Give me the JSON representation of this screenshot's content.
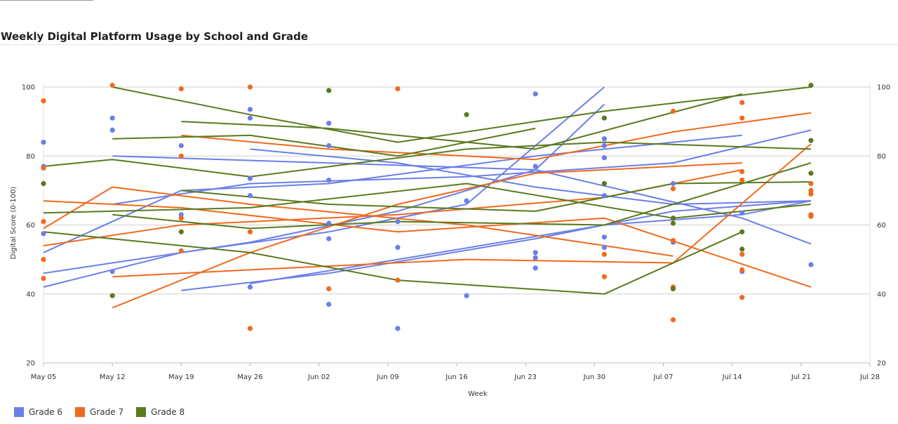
{
  "chart_data": {
    "type": "line",
    "title": "Weekly Digital Platform Usage by School and Grade",
    "xlabel": "Week",
    "ylabel": "Digital Score (0-100)",
    "ylim": [
      20,
      100
    ],
    "y_ticks": [
      20,
      40,
      60,
      80,
      100
    ],
    "x_range": [
      "2025-05-05",
      "2025-07-28"
    ],
    "x_tick_labels": [
      "May 05",
      "May 12",
      "May 19",
      "May 26",
      "Jun 02",
      "Jun 09",
      "Jun 16",
      "Jun 23",
      "Jun 30",
      "Jul 07",
      "Jul 14",
      "Jul 21",
      "Jul 28"
    ],
    "grid": true,
    "legend_position": "bottom-left",
    "series": [
      {
        "name": "Grade 6",
        "color": "#6a7fe8",
        "points": [
          [
            "2025-05-05",
            84
          ],
          [
            "2025-05-05",
            77
          ],
          [
            "2025-05-05",
            57.5
          ],
          [
            "2025-05-12",
            91
          ],
          [
            "2025-05-12",
            87.5
          ],
          [
            "2025-05-12",
            46.5
          ],
          [
            "2025-05-19",
            83
          ],
          [
            "2025-05-19",
            63
          ],
          [
            "2025-05-26",
            93.5
          ],
          [
            "2025-05-26",
            91
          ],
          [
            "2025-05-26",
            73.5
          ],
          [
            "2025-05-26",
            68.5
          ],
          [
            "2025-05-26",
            42
          ],
          [
            "2025-06-03",
            89.5
          ],
          [
            "2025-06-03",
            83
          ],
          [
            "2025-06-03",
            73
          ],
          [
            "2025-06-03",
            60.5
          ],
          [
            "2025-06-03",
            56
          ],
          [
            "2025-06-03",
            37
          ],
          [
            "2025-06-10",
            61
          ],
          [
            "2025-06-10",
            53.5
          ],
          [
            "2025-06-10",
            30
          ],
          [
            "2025-06-17",
            67
          ],
          [
            "2025-06-17",
            39.5
          ],
          [
            "2025-06-24",
            98
          ],
          [
            "2025-06-24",
            77
          ],
          [
            "2025-06-24",
            52
          ],
          [
            "2025-06-24",
            50.5
          ],
          [
            "2025-06-24",
            47.5
          ],
          [
            "2025-07-01",
            85
          ],
          [
            "2025-07-01",
            83
          ],
          [
            "2025-07-01",
            79.5
          ],
          [
            "2025-07-01",
            68.5
          ],
          [
            "2025-07-01",
            56.5
          ],
          [
            "2025-07-01",
            53.5
          ],
          [
            "2025-07-08",
            72
          ],
          [
            "2025-07-08",
            55
          ],
          [
            "2025-07-15",
            63.5
          ],
          [
            "2025-07-15",
            46.5
          ],
          [
            "2025-07-22",
            48.5
          ]
        ]
      },
      {
        "name": "Grade 7",
        "color": "#f06a1e",
        "points": [
          [
            "2025-05-05",
            96
          ],
          [
            "2025-05-05",
            76.5
          ],
          [
            "2025-05-05",
            61
          ],
          [
            "2025-05-05",
            50
          ],
          [
            "2025-05-05",
            44.5
          ],
          [
            "2025-05-12",
            100.5
          ],
          [
            "2025-05-19",
            99.5
          ],
          [
            "2025-05-19",
            80
          ],
          [
            "2025-05-19",
            62
          ],
          [
            "2025-05-19",
            52.5
          ],
          [
            "2025-05-26",
            100
          ],
          [
            "2025-05-26",
            58
          ],
          [
            "2025-05-26",
            30
          ],
          [
            "2025-06-03",
            41.5
          ],
          [
            "2025-06-10",
            99.5
          ],
          [
            "2025-06-10",
            44
          ],
          [
            "2025-07-01",
            51.5
          ],
          [
            "2025-07-01",
            45
          ],
          [
            "2025-07-08",
            93
          ],
          [
            "2025-07-08",
            70.5
          ],
          [
            "2025-07-08",
            55.5
          ],
          [
            "2025-07-08",
            42
          ],
          [
            "2025-07-08",
            32.5
          ],
          [
            "2025-07-15",
            95.5
          ],
          [
            "2025-07-15",
            91
          ],
          [
            "2025-07-15",
            75.5
          ],
          [
            "2025-07-15",
            73
          ],
          [
            "2025-07-15",
            51.5
          ],
          [
            "2025-07-15",
            47
          ],
          [
            "2025-07-15",
            39
          ],
          [
            "2025-07-22",
            72
          ],
          [
            "2025-07-22",
            70
          ],
          [
            "2025-07-22",
            69
          ],
          [
            "2025-07-22",
            63
          ],
          [
            "2025-07-22",
            62.5
          ]
        ]
      },
      {
        "name": "Grade 8",
        "color": "#5a7a1e",
        "points": [
          [
            "2025-05-05",
            72
          ],
          [
            "2025-05-12",
            39.5
          ],
          [
            "2025-05-19",
            58
          ],
          [
            "2025-06-03",
            99
          ],
          [
            "2025-06-17",
            92
          ],
          [
            "2025-07-01",
            91
          ],
          [
            "2025-07-01",
            72
          ],
          [
            "2025-07-08",
            62
          ],
          [
            "2025-07-08",
            60.5
          ],
          [
            "2025-07-08",
            41.5
          ],
          [
            "2025-07-15",
            58
          ],
          [
            "2025-07-15",
            53
          ],
          [
            "2025-07-22",
            100.5
          ],
          [
            "2025-07-22",
            84.5
          ],
          [
            "2025-07-22",
            75
          ]
        ]
      }
    ],
    "trend_lines": [
      {
        "series": "Grade 6",
        "segments": [
          [
            [
              "2025-05-05",
              42
            ],
            [
              "2025-05-19",
              52
            ],
            [
              "2025-06-03",
              58
            ],
            [
              "2025-06-17",
              66
            ],
            [
              "2025-07-01",
              100
            ]
          ],
          [
            [
              "2025-05-05",
              46
            ],
            [
              "2025-05-26",
              55
            ],
            [
              "2025-06-10",
              64
            ],
            [
              "2025-06-24",
              76
            ],
            [
              "2025-07-01",
              95
            ]
          ],
          [
            [
              "2025-05-05",
              52
            ],
            [
              "2025-05-19",
              70
            ],
            [
              "2025-06-03",
              72
            ],
            [
              "2025-06-24",
              80
            ],
            [
              "2025-07-15",
              86
            ]
          ],
          [
            [
              "2025-05-12",
              66
            ],
            [
              "2025-05-26",
              72
            ],
            [
              "2025-06-17",
              74
            ],
            [
              "2025-07-08",
              78
            ],
            [
              "2025-07-22",
              87.5
            ]
          ],
          [
            [
              "2025-05-12",
              80
            ],
            [
              "2025-06-03",
              78
            ],
            [
              "2025-06-24",
              76
            ],
            [
              "2025-07-15",
              62
            ],
            [
              "2025-07-22",
              54.5
            ]
          ],
          [
            [
              "2025-05-19",
              41
            ],
            [
              "2025-06-03",
              46
            ],
            [
              "2025-06-24",
              56
            ],
            [
              "2025-07-08",
              64
            ],
            [
              "2025-07-22",
              67
            ]
          ],
          [
            [
              "2025-05-26",
              43
            ],
            [
              "2025-06-10",
              50
            ],
            [
              "2025-07-01",
              60
            ],
            [
              "2025-07-15",
              63
            ],
            [
              "2025-07-22",
              67
            ]
          ],
          [
            [
              "2025-05-26",
              82
            ],
            [
              "2025-06-10",
              78
            ],
            [
              "2025-06-24",
              71
            ],
            [
              "2025-07-08",
              66
            ],
            [
              "2025-07-22",
              67
            ]
          ]
        ]
      },
      {
        "series": "Grade 7",
        "segments": [
          [
            [
              "2025-05-05",
              59
            ],
            [
              "2025-05-12",
              71
            ],
            [
              "2025-05-26",
              66
            ],
            [
              "2025-06-17",
              60
            ],
            [
              "2025-07-08",
              51
            ]
          ],
          [
            [
              "2025-05-05",
              67
            ],
            [
              "2025-05-19",
              65
            ],
            [
              "2025-06-10",
              58
            ],
            [
              "2025-07-01",
              62
            ],
            [
              "2025-07-22",
              42
            ]
          ],
          [
            [
              "2025-05-12",
              36
            ],
            [
              "2025-05-26",
              52
            ],
            [
              "2025-06-10",
              66
            ],
            [
              "2025-06-24",
              75
            ],
            [
              "2025-07-15",
              78
            ]
          ],
          [
            [
              "2025-05-12",
              45
            ],
            [
              "2025-05-26",
              47
            ],
            [
              "2025-06-17",
              50
            ],
            [
              "2025-07-08",
              49
            ],
            [
              "2025-07-22",
              83.5
            ]
          ],
          [
            [
              "2025-05-19",
              86
            ],
            [
              "2025-06-03",
              82
            ],
            [
              "2025-06-24",
              79
            ],
            [
              "2025-07-08",
              87
            ],
            [
              "2025-07-22",
              92.5
            ]
          ],
          [
            [
              "2025-05-05",
              54
            ],
            [
              "2025-05-19",
              60
            ],
            [
              "2025-06-10",
              63
            ],
            [
              "2025-07-01",
              68
            ],
            [
              "2025-07-15",
              76
            ]
          ]
        ]
      },
      {
        "series": "Grade 8",
        "segments": [
          [
            [
              "2025-05-05",
              77
            ],
            [
              "2025-05-12",
              79
            ],
            [
              "2025-05-26",
              74
            ],
            [
              "2025-06-17",
              82
            ],
            [
              "2025-07-01",
              84
            ],
            [
              "2025-07-22",
              82
            ]
          ],
          [
            [
              "2025-05-05",
              63.5
            ],
            [
              "2025-05-26",
              65
            ],
            [
              "2025-06-17",
              72
            ],
            [
              "2025-07-08",
              62
            ],
            [
              "2025-07-22",
              66
            ]
          ],
          [
            [
              "2025-05-12",
              100
            ],
            [
              "2025-05-26",
              92
            ],
            [
              "2025-06-10",
              84
            ],
            [
              "2025-07-01",
              93
            ],
            [
              "2025-07-22",
              100
            ]
          ],
          [
            [
              "2025-05-12",
              85
            ],
            [
              "2025-05-26",
              86
            ],
            [
              "2025-06-10",
              80
            ],
            [
              "2025-06-24",
              88
            ]
          ],
          [
            [
              "2025-05-19",
              90
            ],
            [
              "2025-06-03",
              88
            ],
            [
              "2025-06-24",
              82
            ],
            [
              "2025-07-15",
              98
            ]
          ],
          [
            [
              "2025-05-05",
              58
            ],
            [
              "2025-05-26",
              52
            ],
            [
              "2025-06-10",
              44
            ],
            [
              "2025-07-01",
              40
            ],
            [
              "2025-07-15",
              58
            ]
          ],
          [
            [
              "2025-05-19",
              70
            ],
            [
              "2025-06-03",
              66
            ],
            [
              "2025-06-24",
              64
            ],
            [
              "2025-07-08",
              72
            ],
            [
              "2025-07-22",
              72.5
            ]
          ],
          [
            [
              "2025-05-12",
              63
            ],
            [
              "2025-05-26",
              59
            ],
            [
              "2025-06-10",
              61
            ],
            [
              "2025-07-01",
              60
            ],
            [
              "2025-07-22",
              78
            ]
          ]
        ]
      }
    ]
  }
}
